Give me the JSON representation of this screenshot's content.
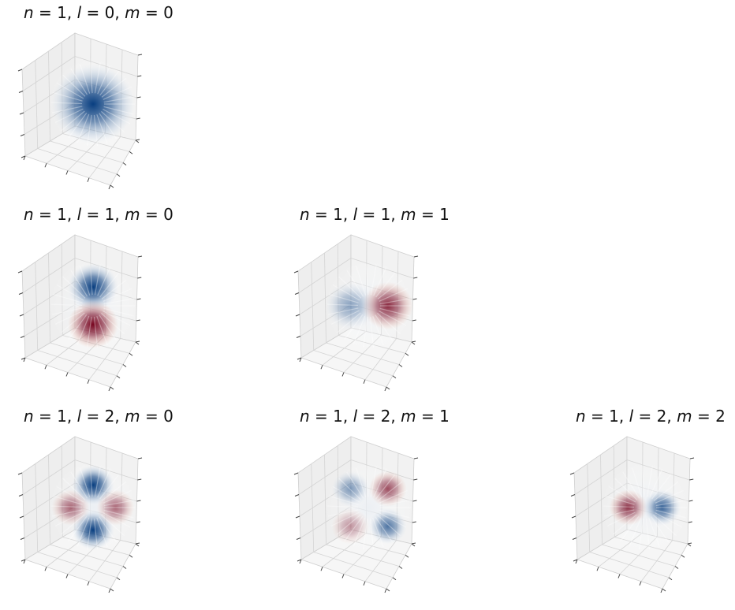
{
  "chart_data": [
    {
      "type": "3d-orbital",
      "title": {
        "n": "1",
        "l": "0",
        "m": "0"
      },
      "row": 0,
      "col": 0,
      "lobes": [
        {
          "sign": "+",
          "y": 0,
          "z": 0,
          "strength": 1.0,
          "spread": 1.0
        }
      ]
    },
    {
      "type": "3d-orbital",
      "title": {
        "n": "1",
        "l": "1",
        "m": "0"
      },
      "row": 1,
      "col": 0,
      "lobes": [
        {
          "sign": "+",
          "y": 0,
          "z": 0.5,
          "strength": 1.0,
          "spread": 0.6
        },
        {
          "sign": "-",
          "y": 0,
          "z": -0.5,
          "strength": 1.0,
          "spread": 0.6
        }
      ]
    },
    {
      "type": "3d-orbital",
      "title": {
        "n": "1",
        "l": "1",
        "m": "1"
      },
      "row": 1,
      "col": 1,
      "lobes": [
        {
          "sign": "+",
          "y": -0.5,
          "z": 0,
          "strength": 0.45,
          "spread": 0.6
        },
        {
          "sign": "-",
          "y": 0.5,
          "z": 0,
          "strength": 0.85,
          "spread": 0.6
        }
      ]
    },
    {
      "type": "3d-orbital",
      "title": {
        "n": "1",
        "l": "2",
        "m": "0"
      },
      "row": 2,
      "col": 0,
      "lobes": [
        {
          "sign": "+",
          "y": 0,
          "z": 0.6,
          "strength": 1.0,
          "spread": 0.5
        },
        {
          "sign": "+",
          "y": 0,
          "z": -0.6,
          "strength": 1.0,
          "spread": 0.5
        },
        {
          "sign": "-",
          "y": -0.6,
          "z": 0,
          "strength": 0.6,
          "spread": 0.45
        },
        {
          "sign": "-",
          "y": 0.6,
          "z": 0,
          "strength": 0.6,
          "spread": 0.45
        }
      ]
    },
    {
      "type": "3d-orbital",
      "title": {
        "n": "1",
        "l": "2",
        "m": "1"
      },
      "row": 2,
      "col": 1,
      "lobes": [
        {
          "sign": "+",
          "y": -0.5,
          "z": 0.5,
          "strength": 0.5,
          "spread": 0.45
        },
        {
          "sign": "-",
          "y": 0.5,
          "z": 0.5,
          "strength": 0.7,
          "spread": 0.45
        },
        {
          "sign": "-",
          "y": -0.5,
          "z": -0.5,
          "strength": 0.4,
          "spread": 0.45
        },
        {
          "sign": "+",
          "y": 0.5,
          "z": -0.5,
          "strength": 0.7,
          "spread": 0.45
        }
      ]
    },
    {
      "type": "3d-orbital",
      "title": {
        "n": "1",
        "l": "2",
        "m": "2"
      },
      "row": 2,
      "col": 2,
      "lobes": [
        {
          "sign": "-",
          "y": -0.45,
          "z": 0,
          "strength": 0.8,
          "spread": 0.45
        },
        {
          "sign": "+",
          "y": 0.45,
          "z": 0,
          "strength": 0.8,
          "spread": 0.45
        }
      ]
    }
  ],
  "colormap": {
    "positive": "#08306b",
    "negative": "#67001f",
    "mid": "#ffffff"
  }
}
